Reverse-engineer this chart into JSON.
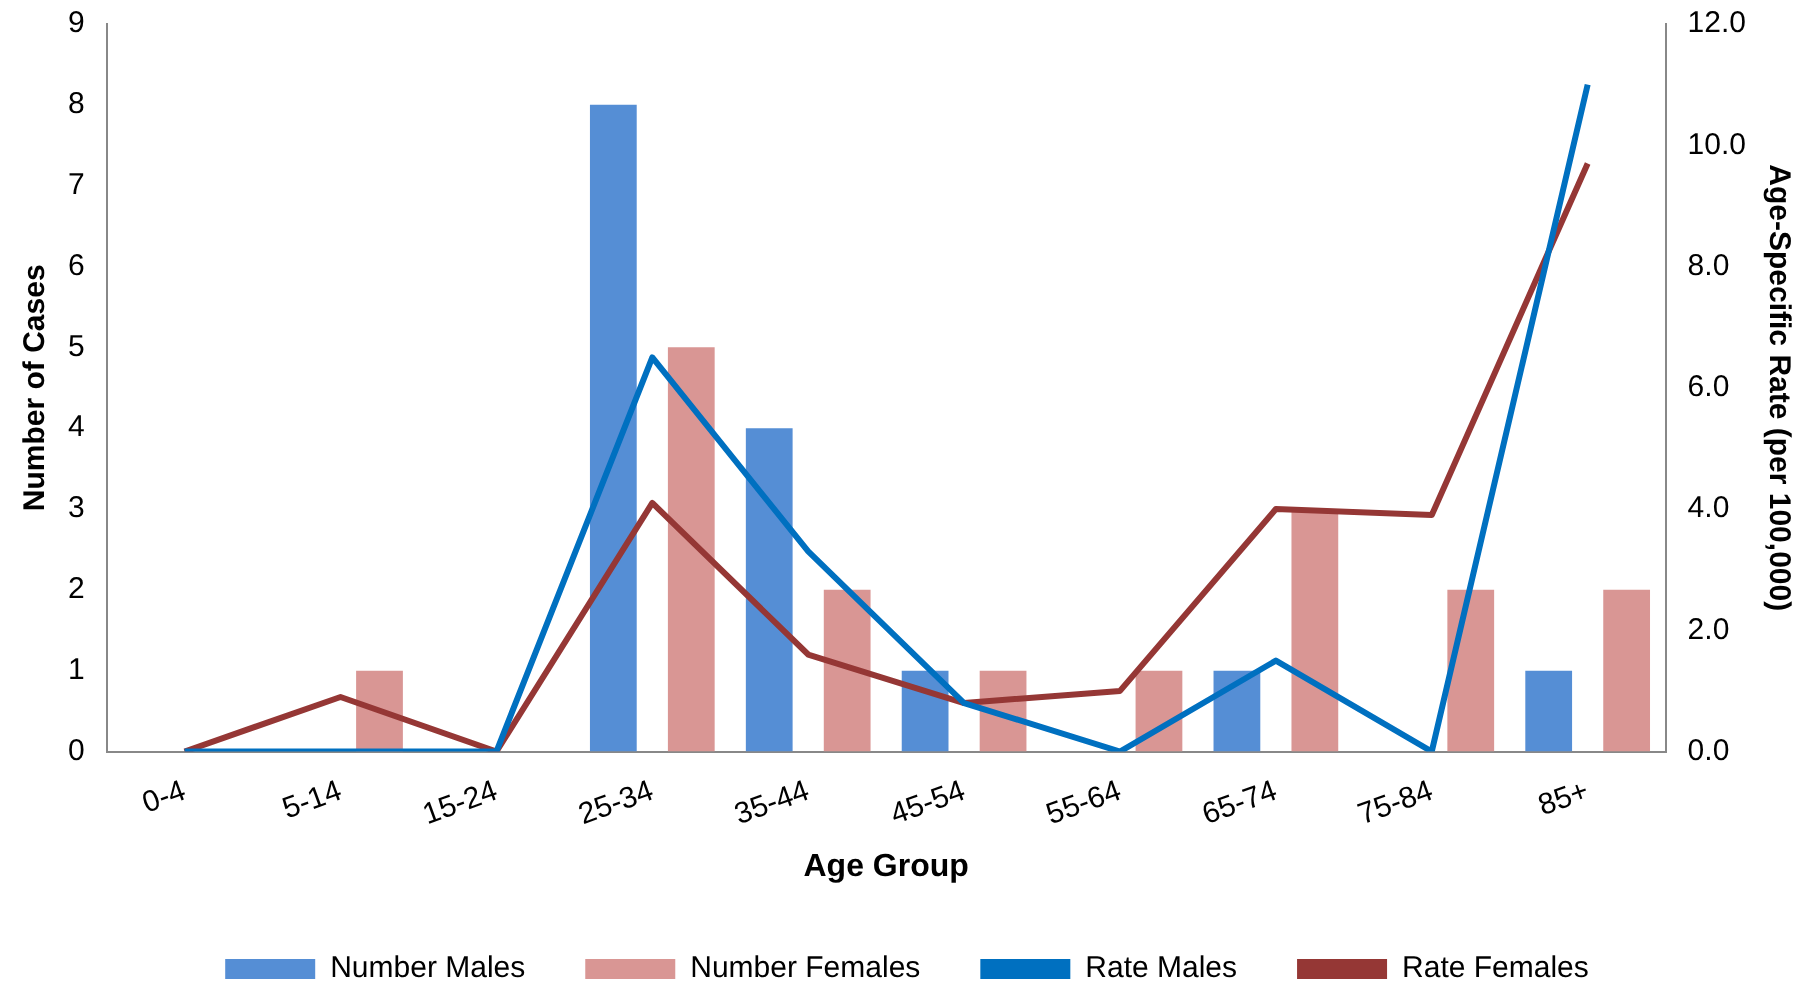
{
  "chart_data": {
    "type": "bar",
    "xlabel": "Age Group",
    "ylabel": "Number of Cases",
    "y2label": "Age-Specific Rate (per 100,000)",
    "categories": [
      "0-4",
      "5-14",
      "15-24",
      "25-34",
      "35-44",
      "45-54",
      "55-64",
      "65-74",
      "75-84",
      "85+"
    ],
    "series": [
      {
        "name": "Number Males",
        "color": "#558ed5",
        "values": [
          0,
          0,
          0,
          8,
          4,
          1,
          0,
          1,
          0,
          1
        ]
      },
      {
        "name": "Number Females",
        "color": "#d99694",
        "values": [
          0,
          1,
          0,
          5,
          2,
          1,
          1,
          3,
          2,
          2
        ]
      },
      {
        "name": "Rate Males",
        "type": "line",
        "axis": "y2",
        "color": "#0070c0",
        "values": [
          0,
          0,
          0,
          6.5,
          3.3,
          0.8,
          0,
          1.5,
          0,
          11.0
        ]
      },
      {
        "name": "Rate Females",
        "type": "line",
        "axis": "y2",
        "color": "#953735",
        "values": [
          0,
          0.9,
          0,
          4.1,
          1.6,
          0.8,
          1.0,
          4.0,
          3.9,
          9.7
        ]
      }
    ],
    "ylim": [
      0,
      9
    ],
    "yticks": [
      0,
      1,
      2,
      3,
      4,
      5,
      6,
      7,
      8,
      9
    ],
    "y2lim": [
      0,
      12
    ],
    "y2ticks": [
      {
        "value": 0,
        "label": "0.0"
      },
      {
        "value": 2,
        "label": "2.0"
      },
      {
        "value": 4,
        "label": "4.0"
      },
      {
        "value": 6,
        "label": "6.0"
      },
      {
        "value": 8,
        "label": "8.0"
      },
      {
        "value": 10,
        "label": "10.0"
      },
      {
        "value": 12,
        "label": "12.0"
      }
    ],
    "grid": false,
    "legend": "bottom",
    "marker": "none",
    "line_style": "solid"
  }
}
